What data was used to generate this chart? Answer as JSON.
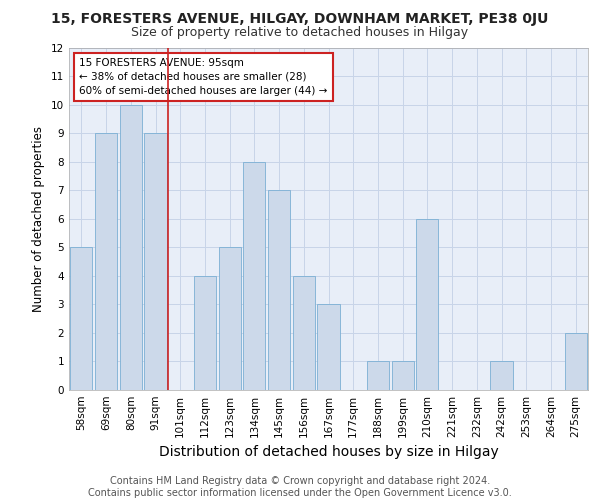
{
  "title_line1": "15, FORESTERS AVENUE, HILGAY, DOWNHAM MARKET, PE38 0JU",
  "title_line2": "Size of property relative to detached houses in Hilgay",
  "xlabel": "Distribution of detached houses by size in Hilgay",
  "ylabel": "Number of detached properties",
  "categories": [
    "58sqm",
    "69sqm",
    "80sqm",
    "91sqm",
    "101sqm",
    "112sqm",
    "123sqm",
    "134sqm",
    "145sqm",
    "156sqm",
    "167sqm",
    "177sqm",
    "188sqm",
    "199sqm",
    "210sqm",
    "221sqm",
    "232sqm",
    "242sqm",
    "253sqm",
    "264sqm",
    "275sqm"
  ],
  "values": [
    5,
    9,
    10,
    9,
    0,
    4,
    5,
    8,
    7,
    4,
    3,
    0,
    1,
    1,
    6,
    0,
    0,
    1,
    0,
    0,
    2
  ],
  "bar_color": "#ccd9ea",
  "bar_edge_color": "#7bafd4",
  "vline_x": 3.5,
  "vline_color": "#cc2222",
  "annotation_text": "15 FORESTERS AVENUE: 95sqm\n← 38% of detached houses are smaller (28)\n60% of semi-detached houses are larger (44) →",
  "annotation_box_color": "#ffffff",
  "annotation_box_edge": "#cc2222",
  "ylim": [
    0,
    12
  ],
  "yticks": [
    0,
    1,
    2,
    3,
    4,
    5,
    6,
    7,
    8,
    9,
    10,
    11,
    12
  ],
  "grid_color": "#c8d4e8",
  "background_color": "#e8eef8",
  "footer": "Contains HM Land Registry data © Crown copyright and database right 2024.\nContains public sector information licensed under the Open Government Licence v3.0.",
  "footer_fontsize": 7,
  "title1_fontsize": 10,
  "title2_fontsize": 9,
  "xlabel_fontsize": 10,
  "ylabel_fontsize": 8.5,
  "tick_fontsize": 7.5,
  "annotation_fontsize": 7.5
}
